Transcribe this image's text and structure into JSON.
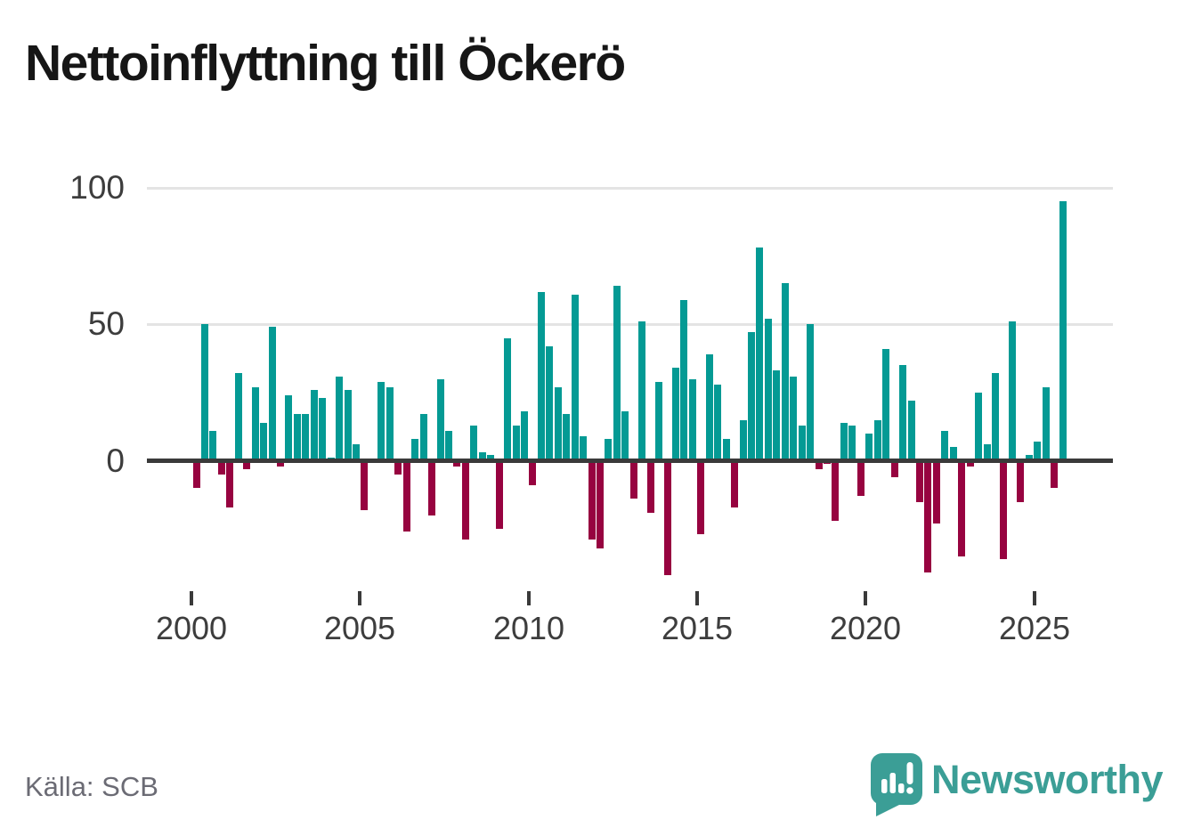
{
  "title": "Nettoinflyttning till Öckerö",
  "source": "Källa: SCB",
  "branding": {
    "logo_text": "Newsworthy",
    "logo_icon": "speech-bubble-with-bar-chart-and-exclamation"
  },
  "colors": {
    "positive": "#049a94",
    "negative": "#970340",
    "axis": "#3a3a3a",
    "grid": "#e4e4e4",
    "tick_label": "#3d3d3d",
    "source_text": "#6b6b74",
    "brand_teal": "#3b9e96",
    "title_text": "#161616",
    "background": "#ffffff"
  },
  "chart_data": {
    "type": "bar",
    "title": "Nettoinflyttning till Öckerö",
    "xlabel": "",
    "ylabel": "",
    "x_unit": "quarter",
    "grid": "horizontal-only",
    "legend": "none",
    "ylim": [
      -50,
      100
    ],
    "y_ticks": [
      0,
      50,
      100
    ],
    "x_tick_labels": [
      "2000",
      "2005",
      "2010",
      "2015",
      "2020",
      "2025"
    ],
    "series_name": "Nettoinflyttning per kvartal",
    "values_by_year": [
      {
        "year": 2000,
        "q": [
          -10,
          50,
          11,
          -5
        ]
      },
      {
        "year": 2001,
        "q": [
          -17,
          32,
          -3,
          27
        ]
      },
      {
        "year": 2002,
        "q": [
          14,
          49,
          -2,
          24
        ]
      },
      {
        "year": 2003,
        "q": [
          17,
          17,
          26,
          23
        ]
      },
      {
        "year": 2004,
        "q": [
          1,
          31,
          26,
          6
        ]
      },
      {
        "year": 2005,
        "q": [
          -18,
          0,
          29,
          27
        ]
      },
      {
        "year": 2006,
        "q": [
          -5,
          -26,
          8,
          17
        ]
      },
      {
        "year": 2007,
        "q": [
          -20,
          30,
          11,
          -2
        ]
      },
      {
        "year": 2008,
        "q": [
          -29,
          13,
          3,
          2
        ]
      },
      {
        "year": 2009,
        "q": [
          -25,
          45,
          13,
          18
        ]
      },
      {
        "year": 2010,
        "q": [
          -9,
          62,
          42,
          27
        ]
      },
      {
        "year": 2011,
        "q": [
          17,
          61,
          9,
          -29
        ]
      },
      {
        "year": 2012,
        "q": [
          -32,
          8,
          64,
          18
        ]
      },
      {
        "year": 2013,
        "q": [
          -14,
          51,
          -19,
          29
        ]
      },
      {
        "year": 2014,
        "q": [
          -42,
          34,
          59,
          30
        ]
      },
      {
        "year": 2015,
        "q": [
          -27,
          39,
          28,
          8
        ]
      },
      {
        "year": 2016,
        "q": [
          -17,
          15,
          47,
          78
        ]
      },
      {
        "year": 2017,
        "q": [
          52,
          33,
          65,
          31
        ]
      },
      {
        "year": 2018,
        "q": [
          13,
          50,
          -3,
          -1
        ]
      },
      {
        "year": 2019,
        "q": [
          -22,
          14,
          13,
          -13
        ]
      },
      {
        "year": 2020,
        "q": [
          10,
          15,
          41,
          -6
        ]
      },
      {
        "year": 2021,
        "q": [
          35,
          22,
          -15,
          -41
        ]
      },
      {
        "year": 2022,
        "q": [
          -23,
          11,
          5,
          -35
        ]
      },
      {
        "year": 2023,
        "q": [
          -2,
          25,
          6,
          32
        ]
      },
      {
        "year": 2024,
        "q": [
          -36,
          51,
          -15,
          2
        ]
      },
      {
        "year": 2025,
        "q": [
          7,
          27,
          -10,
          95
        ]
      }
    ]
  }
}
